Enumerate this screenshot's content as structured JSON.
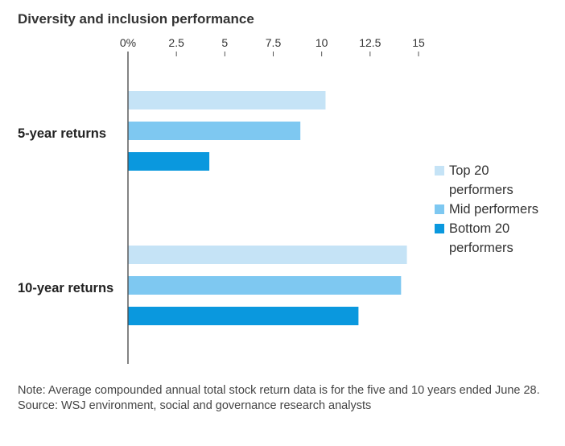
{
  "chart_data": {
    "type": "bar",
    "orientation": "horizontal",
    "title": "Diversity and inclusion performance",
    "categories": [
      "5-year returns",
      "10-year returns"
    ],
    "series": [
      {
        "name": "Top 20 performers",
        "values": [
          10.2,
          14.4
        ],
        "color": "#c5e3f6"
      },
      {
        "name": "Mid performers",
        "values": [
          8.9,
          14.1
        ],
        "color": "#7ec8f1"
      },
      {
        "name": "Bottom 20 performers",
        "values": [
          4.2,
          11.9
        ],
        "color": "#0a98de"
      }
    ],
    "xlim": [
      0,
      15
    ],
    "tick_labels": [
      "0%",
      "2.5",
      "5",
      "7.5",
      "10",
      "12.5",
      "15"
    ],
    "ticks": [
      0,
      2.5,
      5,
      7.5,
      10,
      12.5,
      15
    ],
    "legend_position": "right",
    "grid": false
  },
  "legend": [
    {
      "line1": "Top 20",
      "line2": "performers"
    },
    {
      "line1": "Mid performers",
      "line2": ""
    },
    {
      "line1": "Bottom 20",
      "line2": "performers"
    }
  ],
  "notes": {
    "note": "Note: Average compounded annual total stock return data is for the five and 10 years ended June 28.",
    "source": "Source: WSJ environment, social and governance research analysts"
  }
}
